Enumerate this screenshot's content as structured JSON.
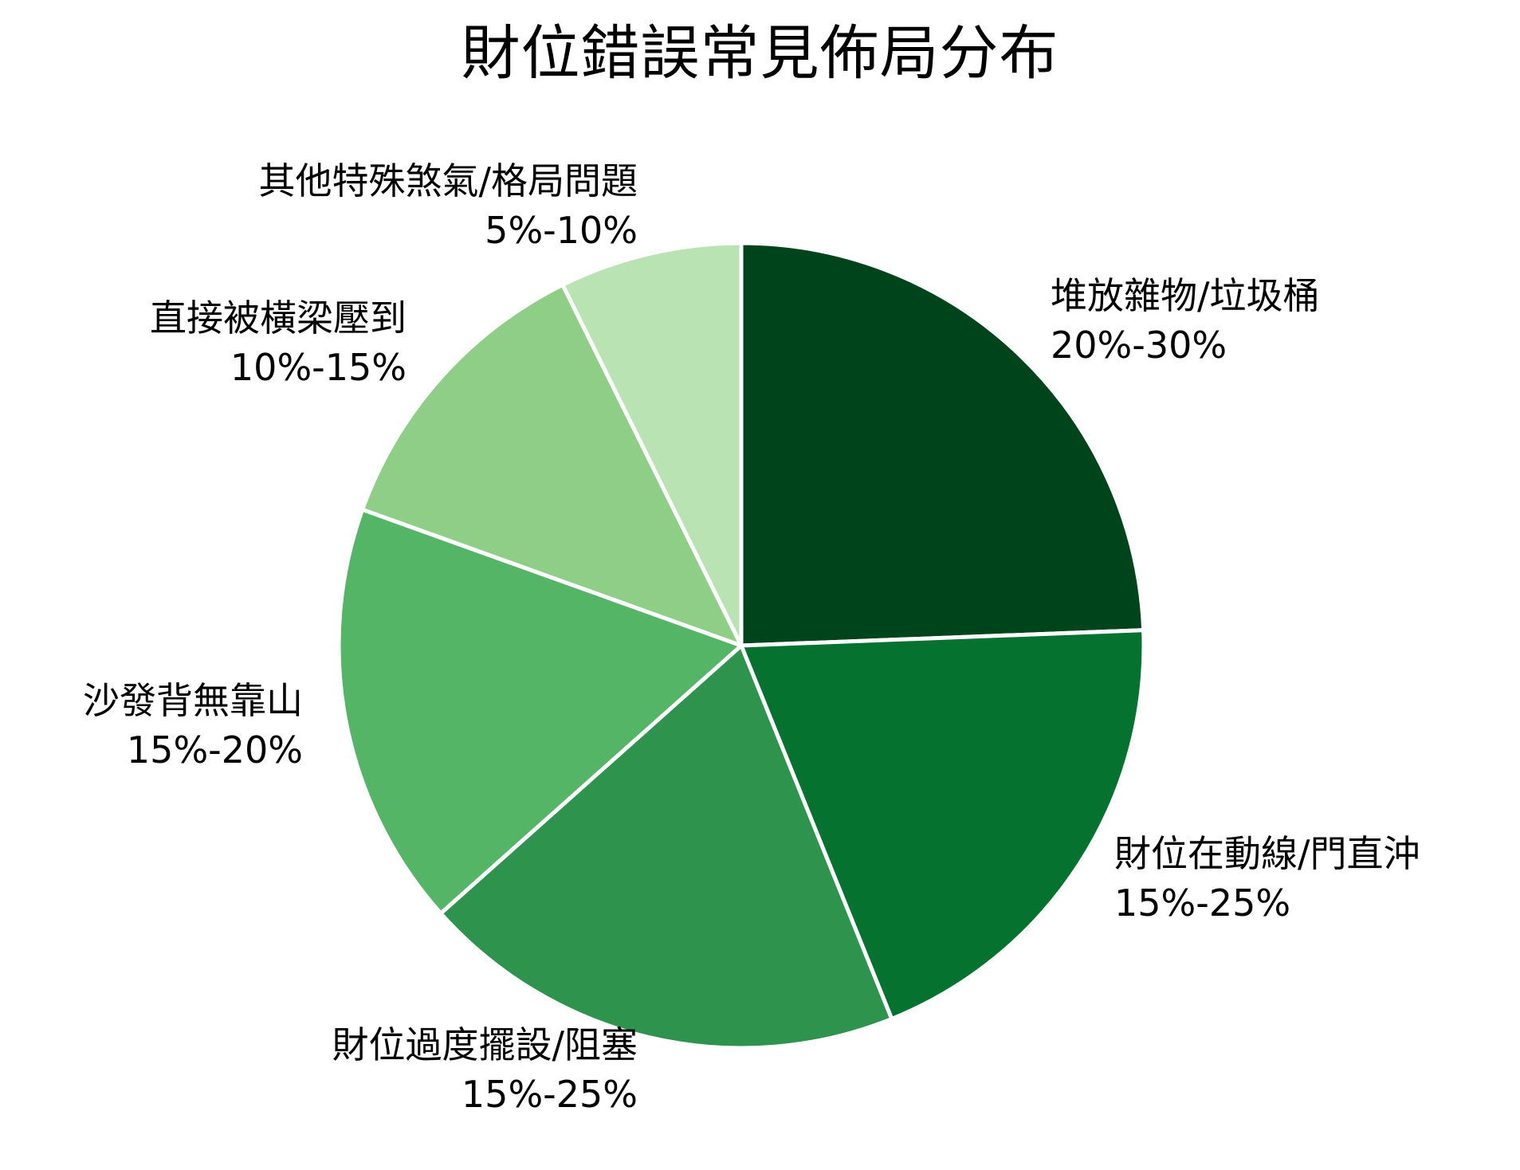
{
  "chart_data": {
    "type": "pie",
    "title": "財位錯誤常見佈局分布",
    "start_angle_deg": 0,
    "direction": "clockwise",
    "slices": [
      {
        "label": "堆放雜物/垃圾桶",
        "range": "20%-30%",
        "value": 25.0,
        "color": "#00441b"
      },
      {
        "label": "財位在動線/門直沖",
        "range": "15%-25%",
        "value": 20.0,
        "color": "#067230"
      },
      {
        "label": "財位過度擺設/阻塞",
        "range": "15%-25%",
        "value": 20.0,
        "color": "#2d934d"
      },
      {
        "label": "沙發背無靠山",
        "range": "15%-20%",
        "value": 17.5,
        "color": "#55b567"
      },
      {
        "label": "直接被橫梁壓到",
        "range": "10%-15%",
        "value": 12.5,
        "color": "#8ece87"
      },
      {
        "label": "其他特殊煞氣/格局問題",
        "range": "5%-10%",
        "value": 7.5,
        "color": "#b9e3b3"
      }
    ],
    "xlabel": "",
    "ylabel": "",
    "legend": "none (labels placed outside slices)"
  },
  "title": "財位錯誤常見佈局分布",
  "labels": [
    {
      "name": "堆放雜物/垃圾桶",
      "range": "20%-30%"
    },
    {
      "name": "財位在動線/門直沖",
      "range": "15%-25%"
    },
    {
      "name": "財位過度擺設/阻塞",
      "range": "15%-25%"
    },
    {
      "name": "沙發背無靠山",
      "range": "15%-20%"
    },
    {
      "name": "直接被橫梁壓到",
      "range": "10%-15%"
    },
    {
      "name": "其他特殊煞氣/格局問題",
      "range": "5%-10%"
    }
  ],
  "style": {
    "separator_color": "#ffffff",
    "text_color": "#000000",
    "background": "#ffffff"
  }
}
